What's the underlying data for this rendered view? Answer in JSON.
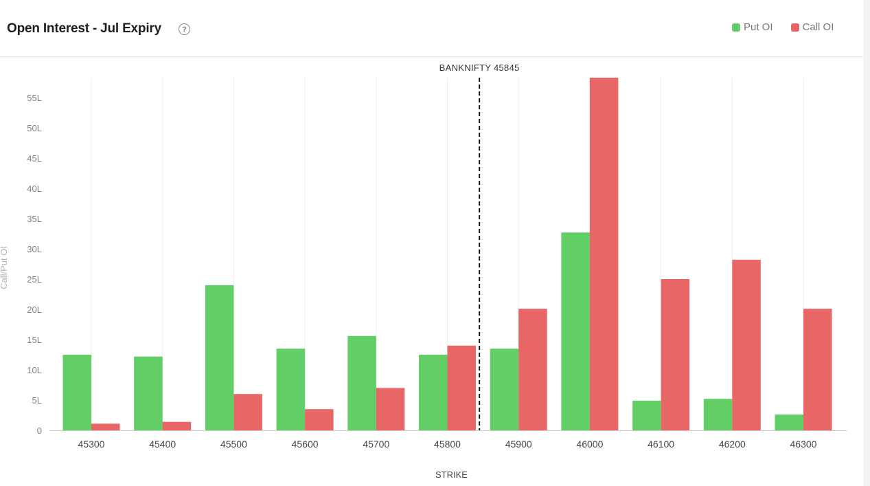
{
  "header": {
    "title": "Open Interest - Jul Expiry",
    "help_symbol": "?"
  },
  "legend": [
    {
      "label": "Put OI",
      "color": "#62cf66"
    },
    {
      "label": "Call OI",
      "color": "#e96666"
    }
  ],
  "chart_data": {
    "type": "bar",
    "title": "Open Interest - Jul Expiry",
    "xlabel": "STRIKE",
    "ylabel": "Call/Put OI",
    "categories": [
      "45300",
      "45400",
      "45500",
      "45600",
      "45700",
      "45800",
      "45900",
      "46000",
      "46100",
      "46200",
      "46300"
    ],
    "series": [
      {
        "name": "Put OI",
        "color": "#62cf66",
        "values": [
          12.5,
          12.2,
          24.0,
          13.5,
          15.6,
          12.5,
          13.5,
          32.7,
          4.9,
          5.2,
          2.6
        ]
      },
      {
        "name": "Call OI",
        "color": "#e96666",
        "values": [
          1.1,
          1.4,
          6.0,
          3.5,
          7.0,
          14.0,
          20.1,
          58.3,
          25.0,
          28.2,
          20.1
        ]
      }
    ],
    "ylim": [
      0,
      58.3
    ],
    "yticks": [
      0,
      5,
      10,
      15,
      20,
      25,
      30,
      35,
      40,
      45,
      50,
      55
    ],
    "ytick_suffix": "L",
    "grid": "vertical",
    "legend_position": "top-right",
    "reference_line": {
      "label": "BANKNIFTY 45845",
      "x_value": 45845
    }
  }
}
